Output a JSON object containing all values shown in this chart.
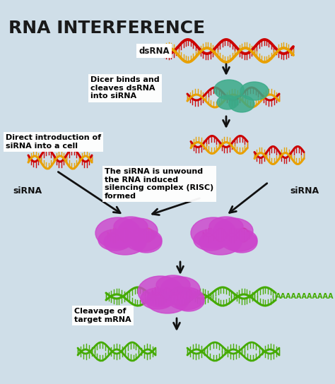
{
  "title": "RNA INTERFERENCE",
  "bg_color": "#cfdee8",
  "title_color": "#1a1a1a",
  "title_fontsize": 18,
  "colors": {
    "red_rna": "#cc0000",
    "yellow_rna": "#e8a000",
    "green_rna": "#44aa00",
    "teal_dicer": "#3aaa88",
    "purple_risc": "#cc44cc",
    "purple_risc2": "#bb33bb",
    "arrow": "#111111",
    "white_box": "#ffffff"
  },
  "texts": {
    "dsRNA": "dsRNA",
    "dicer": "Dicer binds and\ncleaves dsRNA\ninto siRNA",
    "direct": "Direct introduction of\nsiRNA into a cell",
    "siRNA_left": "siRNA",
    "siRNA_right": "siRNA",
    "risc": "The siRNA is unwound\nthe RNA induced\nsilencing complex (RISC)\nformed",
    "cleavage": "Cleavage of\ntarget mRNA",
    "polyA": "AAAAAAAAAAA"
  }
}
